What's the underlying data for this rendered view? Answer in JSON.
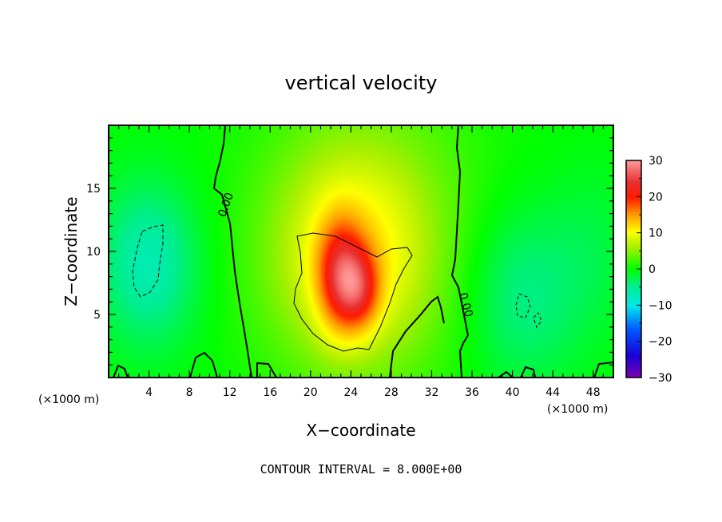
{
  "chart_data": {
    "type": "heatmap",
    "title": "vertical velocity",
    "xlabel": "X−coordinate",
    "ylabel": "Z−coordinate",
    "x_unit_left": "(×1000 m)",
    "x_unit_right": "(×1000 m)",
    "footer": "CONTOUR INTERVAL = 8.000E+00",
    "xlim": [
      0,
      50
    ],
    "ylim": [
      0,
      20
    ],
    "xticks": [
      4,
      8,
      12,
      16,
      20,
      24,
      28,
      32,
      36,
      40,
      44,
      48
    ],
    "xtick_labels": [
      "4",
      "8",
      "12",
      "16",
      "20",
      "24",
      "28",
      "32",
      "36",
      "40",
      "44",
      "48"
    ],
    "yticks": [
      5,
      10,
      15
    ],
    "ytick_labels": [
      "5",
      "10",
      "15"
    ],
    "contour_labels": [
      "0.00",
      "0.00"
    ],
    "colorbar": {
      "vmin": -30,
      "vmax": 30,
      "ticks": [
        30,
        20,
        10,
        0,
        -10,
        -20,
        -30
      ],
      "tick_labels": [
        "30",
        "20",
        "10",
        "0",
        "−10",
        "−20",
        "−30"
      ]
    },
    "field_features": [
      {
        "x": 23.0,
        "z": 8.0,
        "sx": 1.6,
        "sz": 3.0,
        "value": 14
      },
      {
        "x": 25.0,
        "z": 7.0,
        "sx": 1.4,
        "sz": 2.2,
        "value": 10
      },
      {
        "x": 24.0,
        "z": 9.5,
        "sx": 5.5,
        "sz": 6.0,
        "value": 8
      },
      {
        "x": 26.0,
        "z": 12.0,
        "sx": 8.0,
        "sz": 9.0,
        "value": 4
      },
      {
        "x": 4.0,
        "z": 9.0,
        "sx": 3.5,
        "sz": 4.5,
        "value": -7
      },
      {
        "x": 41.0,
        "z": 6.5,
        "sx": 4.0,
        "sz": 5.0,
        "value": -5
      },
      {
        "x": 48.0,
        "z": 10.0,
        "sx": 3.0,
        "sz": 5.0,
        "value": -2
      }
    ]
  }
}
